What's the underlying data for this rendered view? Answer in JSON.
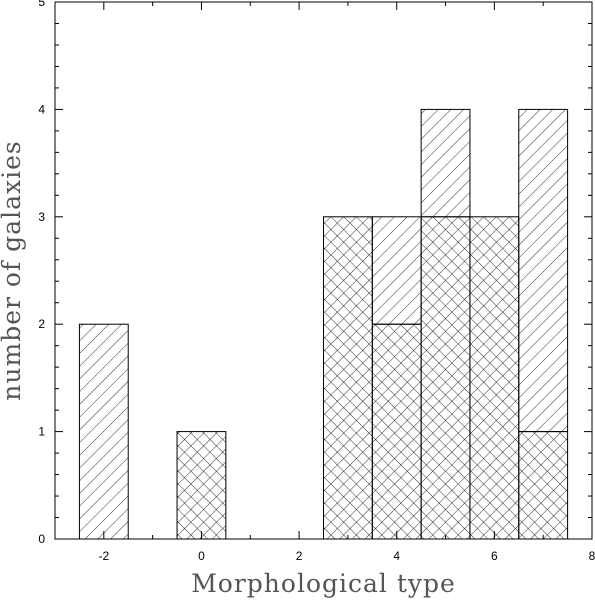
{
  "chart_data": {
    "type": "bar",
    "subtype": "stacked-histogram",
    "xlabel": "Morphological type",
    "ylabel": "number of galaxies",
    "xlim": [
      -3,
      8
    ],
    "ylim": [
      0,
      5
    ],
    "x_ticks": [
      "-2",
      "0",
      "2",
      "4",
      "6",
      "8"
    ],
    "y_ticks": [
      "0",
      "1",
      "2",
      "3",
      "4",
      "5"
    ],
    "bin_width": 1,
    "grid": false,
    "legend": "none",
    "bin_centers": [
      -2,
      -1,
      0,
      1,
      2,
      3,
      4,
      5,
      6,
      7
    ],
    "series": [
      {
        "pattern": "cross-hatch",
        "values": [
          0,
          0,
          1,
          0,
          0,
          3,
          2,
          3,
          3,
          1
        ]
      },
      {
        "pattern": "diagonal-hatch",
        "values": [
          2,
          0,
          0,
          0,
          0,
          0,
          1,
          1,
          0,
          3
        ]
      }
    ],
    "colors": {
      "stroke": "#000000",
      "background": "#ffffff"
    }
  }
}
